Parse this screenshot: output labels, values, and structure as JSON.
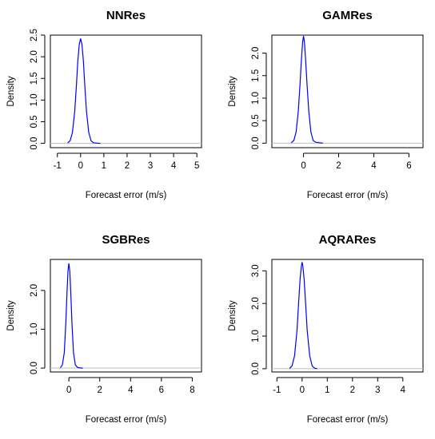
{
  "chart_data": [
    {
      "type": "line",
      "title": "NNRes",
      "xlabel": "Forecast error (m/s)",
      "ylabel": "Density",
      "xlim": [
        -1.3,
        5.2
      ],
      "ylim": [
        -0.1,
        2.5
      ],
      "xticks": [
        -1,
        0,
        1,
        2,
        3,
        4,
        5
      ],
      "yticks": [
        0.0,
        0.5,
        1.0,
        1.5,
        2.0,
        2.5
      ],
      "yticklabels": [
        "0.0",
        "0.5",
        "1.0",
        "1.5",
        "2.0",
        "2.5"
      ],
      "series": [
        {
          "color": "#0000ff",
          "x": [
            -0.55,
            -0.45,
            -0.35,
            -0.25,
            -0.18,
            -0.12,
            -0.06,
            0.0,
            0.06,
            0.12,
            0.18,
            0.25,
            0.35,
            0.45,
            0.55,
            0.7,
            0.85
          ],
          "y": [
            0.01,
            0.06,
            0.25,
            0.75,
            1.35,
            1.9,
            2.28,
            2.42,
            2.28,
            1.9,
            1.35,
            0.75,
            0.25,
            0.06,
            0.015,
            0.005,
            0.0
          ]
        }
      ]
    },
    {
      "type": "line",
      "title": "GAMRes",
      "xlabel": "Forecast error (m/s)",
      "ylabel": "Density",
      "xlim": [
        -1.8,
        6.8
      ],
      "ylim": [
        -0.1,
        2.4
      ],
      "xticks": [
        0,
        2,
        4,
        6
      ],
      "yticks": [
        0.0,
        0.5,
        1.0,
        1.5,
        2.0
      ],
      "yticklabels": [
        "0.0",
        "0.5",
        "1.0",
        "1.5",
        "2.0"
      ],
      "series": [
        {
          "color": "#0000ff",
          "x": [
            -0.7,
            -0.55,
            -0.42,
            -0.3,
            -0.2,
            -0.12,
            -0.05,
            0.0,
            0.05,
            0.12,
            0.2,
            0.3,
            0.42,
            0.55,
            0.7,
            0.9,
            1.1
          ],
          "y": [
            0.01,
            0.06,
            0.25,
            0.7,
            1.3,
            1.85,
            2.25,
            2.38,
            2.25,
            1.85,
            1.3,
            0.7,
            0.25,
            0.06,
            0.02,
            0.01,
            0.0
          ]
        }
      ]
    },
    {
      "type": "line",
      "title": "SGBRes",
      "xlabel": "Forecast error (m/s)",
      "ylabel": "Density",
      "xlim": [
        -1.2,
        8.6
      ],
      "ylim": [
        -0.1,
        2.8
      ],
      "xticks": [
        0,
        2,
        4,
        6,
        8
      ],
      "yticks": [
        0.0,
        1.0,
        2.0
      ],
      "yticklabels": [
        "0.0",
        "1.0",
        "2.0"
      ],
      "series": [
        {
          "color": "#0000ff",
          "x": [
            -0.55,
            -0.42,
            -0.3,
            -0.2,
            -0.12,
            -0.06,
            0.0,
            0.06,
            0.12,
            0.2,
            0.3,
            0.42,
            0.55,
            0.7,
            0.9
          ],
          "y": [
            0.01,
            0.08,
            0.4,
            1.15,
            1.95,
            2.5,
            2.7,
            2.5,
            1.95,
            1.15,
            0.4,
            0.08,
            0.02,
            0.005,
            0.0
          ]
        }
      ]
    },
    {
      "type": "line",
      "title": "AQRARes",
      "xlabel": "Forecast error (m/s)",
      "ylabel": "Density",
      "xlim": [
        -1.2,
        4.8
      ],
      "ylim": [
        -0.1,
        3.35
      ],
      "xticks": [
        -1,
        0,
        1,
        2,
        3,
        4
      ],
      "yticks": [
        0.0,
        1.0,
        2.0,
        3.0
      ],
      "yticklabels": [
        "0.0",
        "1.0",
        "2.0",
        "3.0"
      ],
      "series": [
        {
          "color": "#0000ff",
          "x": [
            -0.5,
            -0.4,
            -0.3,
            -0.2,
            -0.14,
            -0.08,
            -0.03,
            0.0,
            0.03,
            0.08,
            0.14,
            0.2,
            0.3,
            0.4,
            0.5,
            0.6
          ],
          "y": [
            0.01,
            0.08,
            0.4,
            1.2,
            2.0,
            2.75,
            3.15,
            3.27,
            3.15,
            2.75,
            2.0,
            1.2,
            0.4,
            0.08,
            0.015,
            0.0
          ]
        }
      ]
    }
  ]
}
